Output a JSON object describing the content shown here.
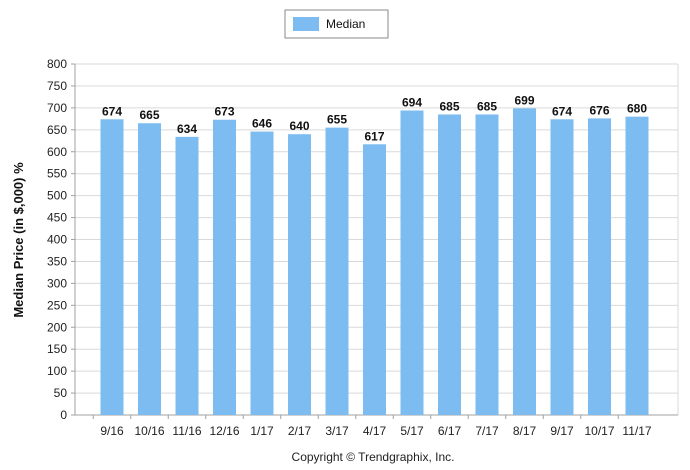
{
  "chart_data": {
    "type": "bar",
    "categories": [
      "9/16",
      "10/16",
      "11/16",
      "12/16",
      "1/17",
      "2/17",
      "3/17",
      "4/17",
      "5/17",
      "6/17",
      "7/17",
      "8/17",
      "9/17",
      "10/17",
      "11/17"
    ],
    "series": [
      {
        "name": "Median",
        "values": [
          674,
          665,
          634,
          673,
          646,
          640,
          655,
          617,
          694,
          685,
          685,
          699,
          674,
          676,
          680
        ]
      }
    ],
    "ylabel": "Median Price (in $,000) %",
    "xlabel": "",
    "ylim": [
      0,
      800
    ],
    "yticks": [
      0,
      50,
      100,
      150,
      200,
      250,
      300,
      350,
      400,
      450,
      500,
      550,
      600,
      650,
      700,
      750,
      800
    ],
    "grid": true,
    "legend_position": "top-center",
    "colors": {
      "bar": "#7dbcf0",
      "grid": "#d9d9d9",
      "axis": "#a0a0a0"
    }
  },
  "footer": {
    "copyright": "Copyright © Trendgraphix, Inc."
  }
}
